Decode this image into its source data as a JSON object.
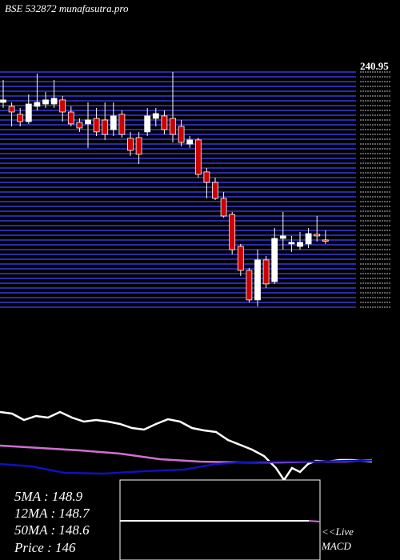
{
  "chart_data": {
    "type": "candlestick",
    "title": "BSE 532872 munafasutra.pro",
    "price_label": 240.95,
    "ylim": [
      108.7,
      241
    ],
    "open": [
      223.9,
      221.7,
      217.2,
      213.1,
      221.7,
      223,
      223,
      225.3,
      218.5,
      212.7,
      211.8,
      214.9,
      214,
      208.6,
      217.2,
      203.7,
      204.1,
      207.3,
      214.9,
      216.3,
      214.9,
      210.4,
      200.5,
      202.8,
      184.8,
      178.9,
      169.9,
      160.9,
      142.9,
      129.4,
      112.8,
      135.3,
      123.1,
      147.4,
      144.3,
      142.9,
      144.3,
      149.7,
      146.5
    ],
    "high": [
      236.5,
      223.9,
      220.8,
      228.4,
      240.1,
      229.8,
      236.5,
      227.5,
      221.7,
      214.9,
      223.9,
      220.8,
      223.9,
      223.9,
      219.4,
      207.3,
      207.3,
      220.8,
      220.8,
      219.4,
      241,
      214,
      205,
      204.1,
      187,
      181.6,
      173.5,
      162.3,
      144.3,
      130.8,
      141.1,
      137.5,
      153.3,
      162.3,
      148.8,
      151,
      153.3,
      160,
      151.9
    ],
    "low": [
      220.8,
      210.4,
      210.4,
      211.8,
      219.4,
      220.8,
      220.8,
      213.1,
      210.4,
      207.3,
      198.3,
      205,
      202.8,
      205,
      204.1,
      193.8,
      189.3,
      205,
      210.4,
      205.9,
      201.4,
      199.2,
      198.3,
      181.6,
      169.9,
      169,
      159.1,
      138.4,
      126.3,
      111.4,
      109.2,
      119.5,
      121.8,
      141.1,
      139.8,
      141.1,
      142,
      145.6,
      144.3
    ],
    "close": [
      225.3,
      218.5,
      213.1,
      223,
      223.9,
      225.3,
      226.2,
      218.5,
      211.8,
      209.5,
      214,
      207.3,
      205.9,
      216.3,
      205.9,
      196.9,
      194.7,
      216.3,
      217.6,
      208.6,
      205.9,
      201.4,
      202.8,
      183.4,
      178.9,
      169.9,
      160,
      141.1,
      129.4,
      112.8,
      135.3,
      121.8,
      147.4,
      148.8,
      145.2,
      145.2,
      150.1,
      148.8,
      146
    ],
    "up_color": "#ffffff",
    "down_color": "#cc0000"
  },
  "stats": [
    "5MA : 148.9",
    "12MA : 148.7",
    "50MA : 148.6",
    "Price  : 146"
  ],
  "macd": {
    "live": "<<Live",
    "label": "MACD"
  }
}
